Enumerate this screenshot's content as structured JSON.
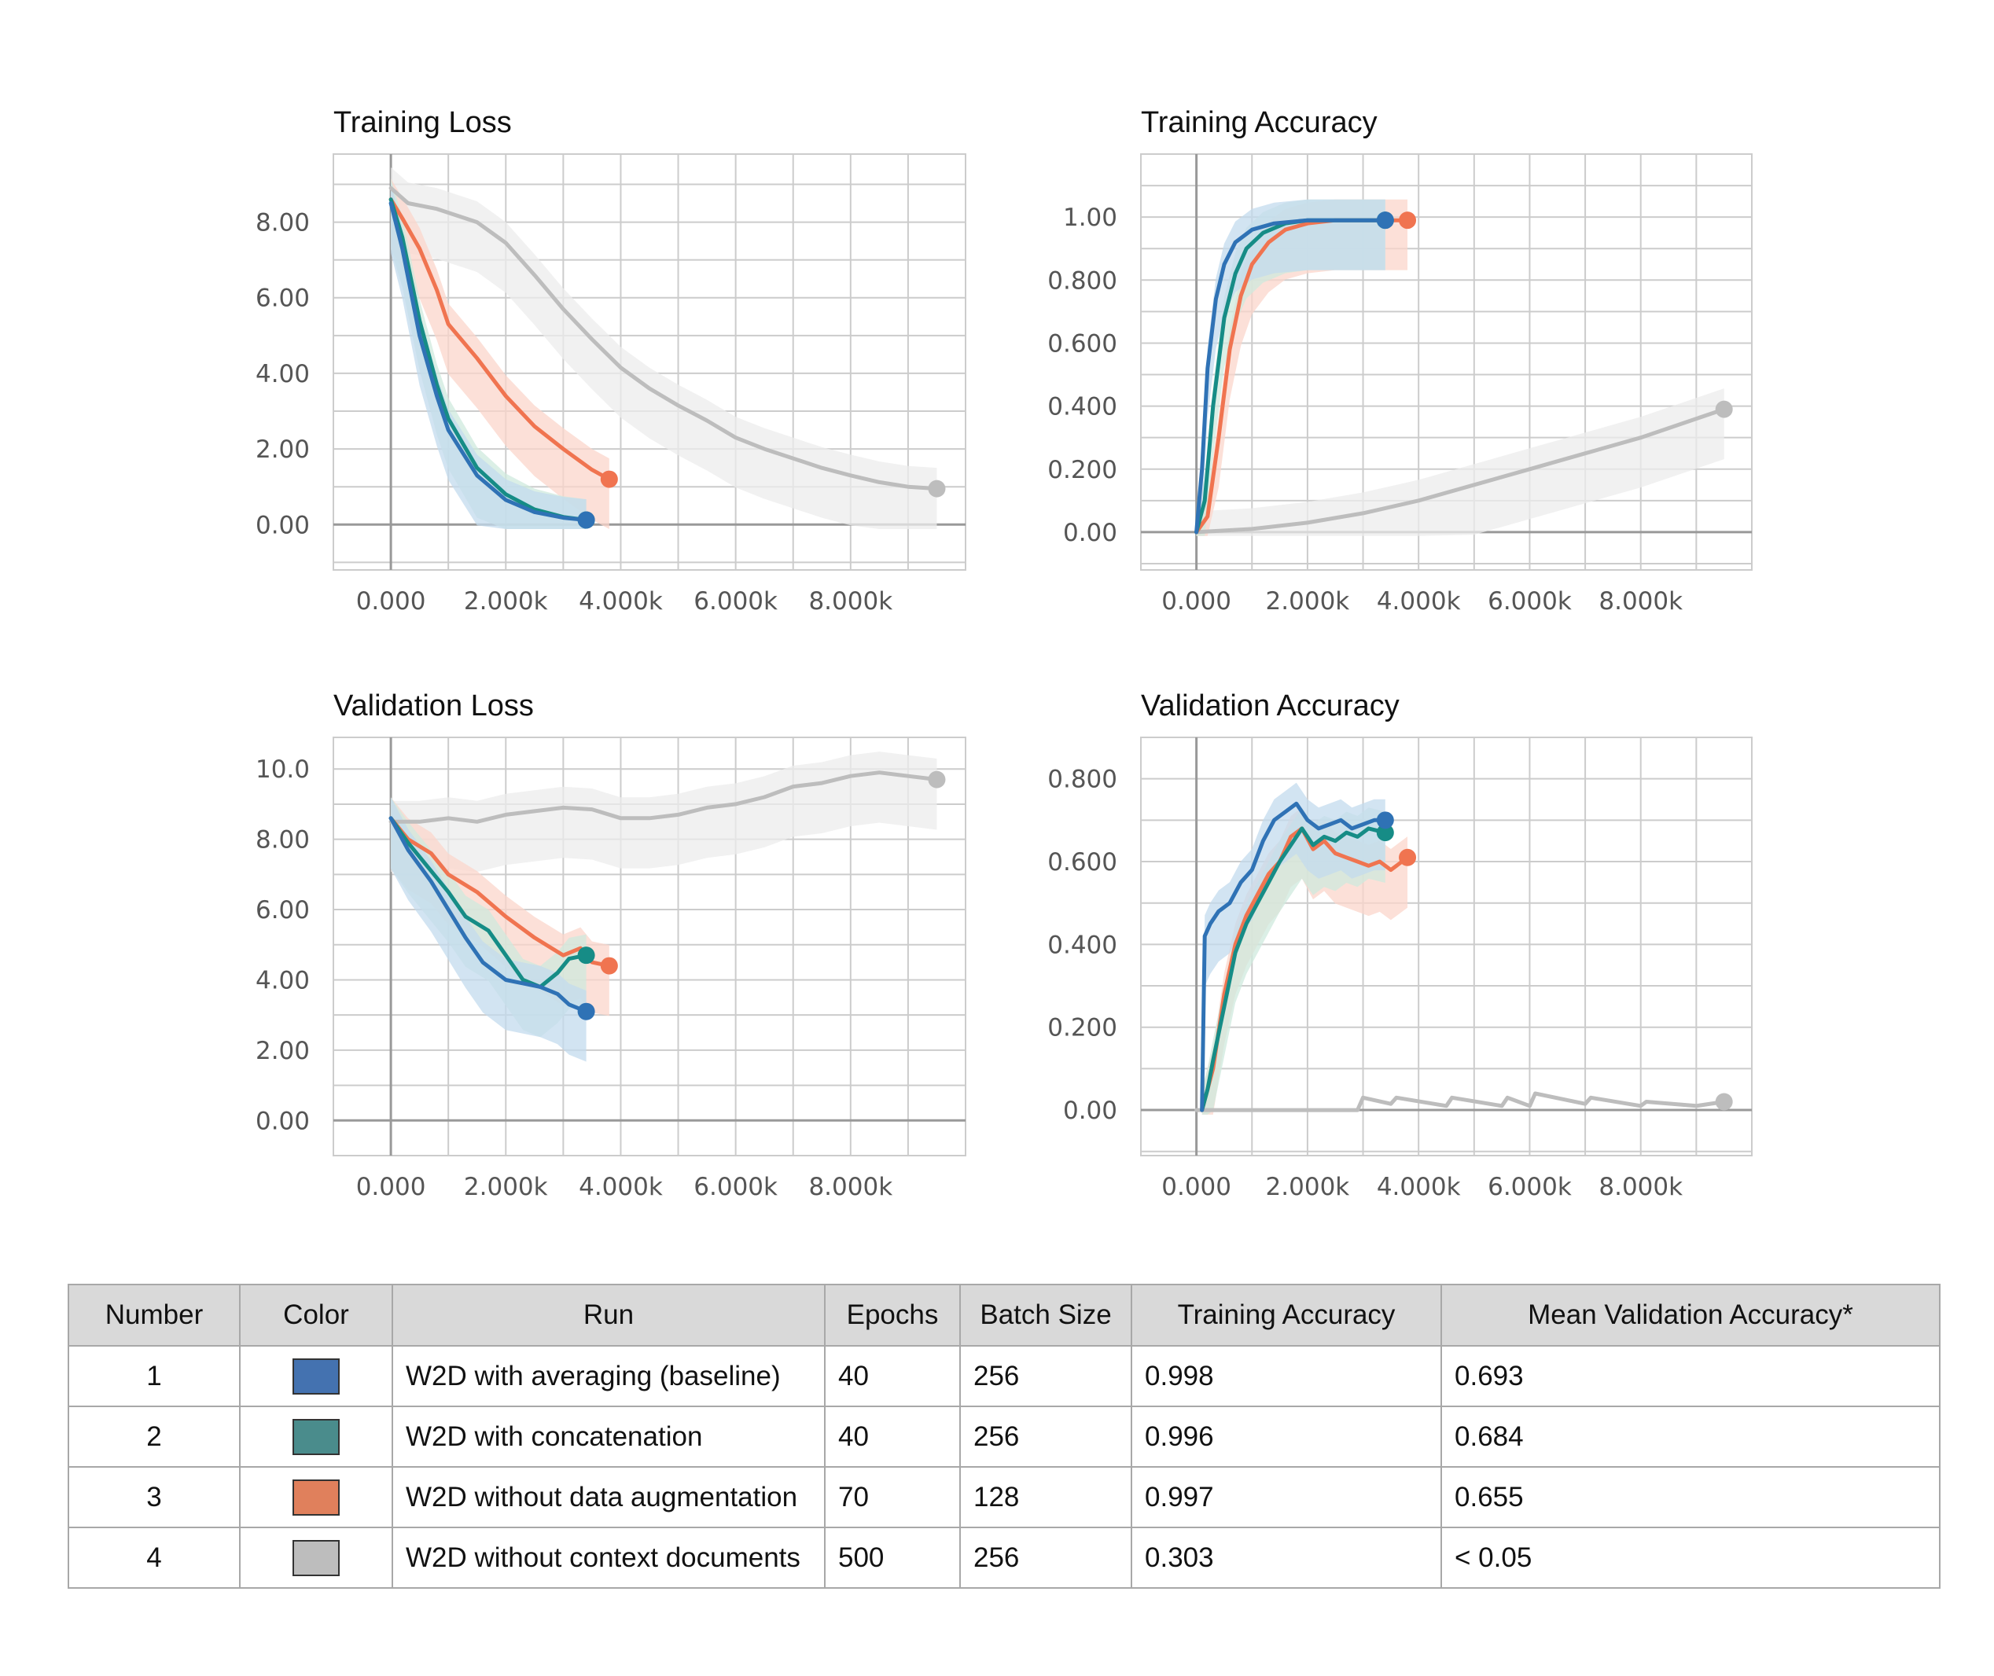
{
  "colors": {
    "run1": "#2f72b5",
    "run2": "#168c86",
    "run3": "#f07450",
    "run4": "#bdbdbd",
    "run1_band": "#c3dbee",
    "run2_band": "#cfe9dd",
    "run3_band": "#fbd6cb",
    "run4_band": "#ececec",
    "grid": "#cccccc",
    "axis": "#999999"
  },
  "chart_data": [
    {
      "type": "line",
      "title": "Training Loss",
      "xlim": [
        -1000,
        10000
      ],
      "ylim": [
        -1.2,
        9.8
      ],
      "x_ticks": [
        0,
        2000,
        4000,
        6000,
        8000
      ],
      "x_tick_labels": [
        "0.000",
        "2.000k",
        "4.000k",
        "6.000k",
        "8.000k"
      ],
      "y_ticks": [
        0,
        2,
        4,
        6,
        8
      ],
      "y_tick_labels": [
        "0.00",
        "2.00",
        "4.00",
        "6.00",
        "8.00"
      ],
      "grid": true,
      "series": [
        {
          "run": 4,
          "color": "#bdbdbd",
          "raw_band": true,
          "x": [
            0,
            300,
            800,
            1500,
            2000,
            2500,
            3000,
            3500,
            4000,
            4500,
            5000,
            5500,
            6000,
            6500,
            7000,
            7500,
            8000,
            8500,
            9000,
            9500
          ],
          "y": [
            8.9,
            8.5,
            8.35,
            8.0,
            7.45,
            6.6,
            5.7,
            4.9,
            4.15,
            3.6,
            3.15,
            2.75,
            2.3,
            2.0,
            1.75,
            1.5,
            1.3,
            1.12,
            1.0,
            0.95
          ]
        },
        {
          "run": 3,
          "color": "#f07450",
          "raw_band": true,
          "x": [
            0,
            200,
            500,
            800,
            1000,
            1500,
            2000,
            2500,
            3000,
            3500,
            3800
          ],
          "y": [
            8.6,
            8.1,
            7.3,
            6.2,
            5.3,
            4.4,
            3.4,
            2.6,
            2.0,
            1.45,
            1.2
          ]
        },
        {
          "run": 2,
          "color": "#168c86",
          "raw_band": true,
          "x": [
            0,
            200,
            500,
            800,
            1000,
            1500,
            2000,
            2500,
            3000,
            3400
          ],
          "y": [
            8.6,
            7.6,
            5.4,
            3.7,
            2.8,
            1.5,
            0.8,
            0.4,
            0.2,
            0.12
          ]
        },
        {
          "run": 1,
          "color": "#2f72b5",
          "raw_band": true,
          "x": [
            0,
            200,
            500,
            800,
            1000,
            1500,
            2000,
            2500,
            3000,
            3400
          ],
          "y": [
            8.5,
            7.3,
            5.0,
            3.4,
            2.5,
            1.3,
            0.65,
            0.33,
            0.18,
            0.12
          ]
        }
      ]
    },
    {
      "type": "line",
      "title": "Training Accuracy",
      "xlim": [
        -1000,
        10000
      ],
      "ylim": [
        -0.12,
        1.2
      ],
      "x_ticks": [
        0,
        2000,
        4000,
        6000,
        8000
      ],
      "x_tick_labels": [
        "0.000",
        "2.000k",
        "4.000k",
        "6.000k",
        "8.000k"
      ],
      "y_ticks": [
        0,
        0.2,
        0.4,
        0.6,
        0.8,
        1.0
      ],
      "y_tick_labels": [
        "0.00",
        "0.200",
        "0.400",
        "0.600",
        "0.800",
        "1.00"
      ],
      "grid": true,
      "series": [
        {
          "run": 4,
          "color": "#bdbdbd",
          "raw_band": true,
          "x": [
            0,
            1000,
            2000,
            3000,
            4000,
            5000,
            6000,
            7000,
            8000,
            9000,
            9500
          ],
          "y": [
            0.0,
            0.01,
            0.03,
            0.06,
            0.1,
            0.15,
            0.2,
            0.25,
            0.3,
            0.36,
            0.39
          ]
        },
        {
          "run": 3,
          "color": "#f07450",
          "raw_band": true,
          "x": [
            0,
            200,
            400,
            600,
            800,
            1000,
            1300,
            1600,
            2000,
            2500,
            3000,
            3500,
            3800
          ],
          "y": [
            0.0,
            0.05,
            0.3,
            0.58,
            0.75,
            0.85,
            0.92,
            0.96,
            0.98,
            0.99,
            0.99,
            0.99,
            0.99
          ]
        },
        {
          "run": 2,
          "color": "#168c86",
          "raw_band": true,
          "x": [
            0,
            150,
            300,
            500,
            700,
            900,
            1200,
            1600,
            2000,
            2500,
            3000,
            3400
          ],
          "y": [
            0.0,
            0.1,
            0.4,
            0.68,
            0.82,
            0.9,
            0.95,
            0.98,
            0.99,
            0.99,
            0.99,
            0.99
          ]
        },
        {
          "run": 1,
          "color": "#2f72b5",
          "raw_band": true,
          "x": [
            0,
            100,
            200,
            350,
            500,
            700,
            1000,
            1400,
            2000,
            2500,
            3000,
            3400
          ],
          "y": [
            0.0,
            0.2,
            0.52,
            0.74,
            0.85,
            0.92,
            0.96,
            0.98,
            0.99,
            0.99,
            0.99,
            0.99
          ]
        }
      ]
    },
    {
      "type": "line",
      "title": "Validation Loss",
      "xlim": [
        -1000,
        10000
      ],
      "ylim": [
        -1.0,
        10.9
      ],
      "x_ticks": [
        0,
        2000,
        4000,
        6000,
        8000
      ],
      "x_tick_labels": [
        "0.000",
        "2.000k",
        "4.000k",
        "6.000k",
        "8.000k"
      ],
      "y_ticks": [
        0,
        2,
        4,
        6,
        8,
        10
      ],
      "y_tick_labels": [
        "0.00",
        "2.00",
        "4.00",
        "6.00",
        "8.00",
        "10.0"
      ],
      "grid": true,
      "series": [
        {
          "run": 4,
          "color": "#bdbdbd",
          "raw_band": true,
          "x": [
            0,
            500,
            1000,
            1500,
            2000,
            2500,
            3000,
            3500,
            4000,
            4500,
            5000,
            5500,
            6000,
            6500,
            7000,
            7500,
            8000,
            8500,
            9000,
            9500
          ],
          "y": [
            8.5,
            8.5,
            8.6,
            8.5,
            8.7,
            8.8,
            8.9,
            8.85,
            8.6,
            8.6,
            8.7,
            8.9,
            9.0,
            9.2,
            9.5,
            9.6,
            9.8,
            9.9,
            9.8,
            9.7
          ]
        },
        {
          "run": 3,
          "color": "#f07450",
          "raw_band": true,
          "x": [
            0,
            300,
            700,
            1000,
            1500,
            2000,
            2500,
            2800,
            3000,
            3300,
            3500,
            3800
          ],
          "y": [
            8.6,
            8.0,
            7.6,
            7.0,
            6.5,
            5.8,
            5.2,
            4.9,
            4.7,
            4.9,
            4.5,
            4.4
          ]
        },
        {
          "run": 2,
          "color": "#168c86",
          "raw_band": true,
          "x": [
            0,
            300,
            700,
            1000,
            1300,
            1700,
            2000,
            2300,
            2600,
            2900,
            3100,
            3400
          ],
          "y": [
            8.6,
            7.9,
            7.1,
            6.5,
            5.8,
            5.4,
            4.7,
            4.0,
            3.8,
            4.2,
            4.6,
            4.7
          ]
        },
        {
          "run": 1,
          "color": "#2f72b5",
          "raw_band": true,
          "x": [
            0,
            300,
            700,
            1000,
            1300,
            1600,
            2000,
            2300,
            2600,
            2900,
            3100,
            3400
          ],
          "y": [
            8.6,
            7.7,
            6.8,
            6.0,
            5.2,
            4.5,
            4.0,
            3.9,
            3.8,
            3.6,
            3.3,
            3.1
          ]
        }
      ]
    },
    {
      "type": "line",
      "title": "Validation Accuracy",
      "xlim": [
        -1000,
        10000
      ],
      "ylim": [
        -0.11,
        0.9
      ],
      "x_ticks": [
        0,
        2000,
        4000,
        6000,
        8000
      ],
      "x_tick_labels": [
        "0.000",
        "2.000k",
        "4.000k",
        "6.000k",
        "8.000k"
      ],
      "y_ticks": [
        0,
        0.2,
        0.4,
        0.6,
        0.8
      ],
      "y_tick_labels": [
        "0.00",
        "0.200",
        "0.400",
        "0.600",
        "0.800"
      ],
      "grid": true,
      "series": [
        {
          "run": 4,
          "color": "#bdbdbd",
          "raw_band": false,
          "x": [
            0,
            2900,
            3000,
            3500,
            3600,
            4500,
            4600,
            5500,
            5600,
            6000,
            6100,
            7000,
            7100,
            8000,
            8100,
            9000,
            9500
          ],
          "y": [
            0.0,
            0.0,
            0.03,
            0.015,
            0.03,
            0.01,
            0.03,
            0.01,
            0.03,
            0.01,
            0.04,
            0.015,
            0.03,
            0.01,
            0.02,
            0.01,
            0.02
          ]
        },
        {
          "run": 3,
          "color": "#f07450",
          "raw_band": true,
          "x": [
            100,
            200,
            300,
            500,
            700,
            900,
            1100,
            1300,
            1500,
            1700,
            1900,
            2100,
            2300,
            2500,
            2700,
            2900,
            3100,
            3300,
            3500,
            3800
          ],
          "y": [
            0.0,
            0.05,
            0.1,
            0.28,
            0.4,
            0.47,
            0.52,
            0.57,
            0.6,
            0.66,
            0.68,
            0.63,
            0.65,
            0.62,
            0.61,
            0.6,
            0.59,
            0.6,
            0.58,
            0.61
          ]
        },
        {
          "run": 2,
          "color": "#168c86",
          "raw_band": true,
          "x": [
            100,
            200,
            300,
            500,
            700,
            900,
            1100,
            1300,
            1500,
            1700,
            1900,
            2100,
            2300,
            2500,
            2700,
            2900,
            3100,
            3400
          ],
          "y": [
            0.0,
            0.05,
            0.12,
            0.25,
            0.38,
            0.45,
            0.5,
            0.55,
            0.6,
            0.64,
            0.68,
            0.64,
            0.66,
            0.65,
            0.67,
            0.66,
            0.68,
            0.67
          ]
        },
        {
          "run": 1,
          "color": "#2f72b5",
          "raw_band": true,
          "x": [
            100,
            150,
            250,
            400,
            600,
            800,
            1000,
            1200,
            1400,
            1600,
            1800,
            2000,
            2200,
            2400,
            2600,
            2800,
            3000,
            3200,
            3400
          ],
          "y": [
            0.0,
            0.42,
            0.45,
            0.48,
            0.5,
            0.55,
            0.58,
            0.65,
            0.7,
            0.72,
            0.74,
            0.7,
            0.68,
            0.69,
            0.7,
            0.68,
            0.69,
            0.7,
            0.7
          ]
        }
      ]
    }
  ],
  "table": {
    "headers": [
      "Number",
      "Color",
      "Run",
      "Epochs",
      "Batch Size",
      "Training Accuracy",
      "Mean Validation Accuracy*"
    ],
    "rows": [
      {
        "number": "1",
        "color": "#4472b0",
        "run": "W2D with averaging (baseline)",
        "epochs": "40",
        "batch_size": "256",
        "training_accuracy": "0.998",
        "mean_validation_accuracy": "0.693"
      },
      {
        "number": "2",
        "color": "#4a8c8c",
        "run": "W2D with concatenation",
        "epochs": "40",
        "batch_size": "256",
        "training_accuracy": "0.996",
        "mean_validation_accuracy": "0.684"
      },
      {
        "number": "3",
        "color": "#e0805c",
        "run": "W2D without data augmentation",
        "epochs": "70",
        "batch_size": "128",
        "training_accuracy": "0.997",
        "mean_validation_accuracy": "0.655"
      },
      {
        "number": "4",
        "color": "#bdbdbd",
        "run": "W2D without context documents",
        "epochs": "500",
        "batch_size": "256",
        "training_accuracy": "0.303",
        "mean_validation_accuracy": "< 0.05"
      }
    ]
  }
}
